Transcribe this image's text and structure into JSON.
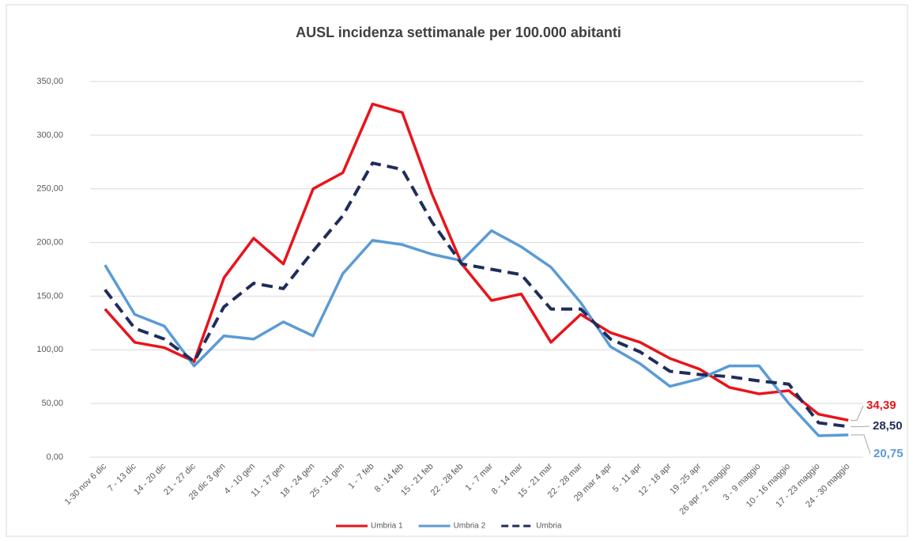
{
  "chart_data": {
    "type": "line",
    "title": "AUSL incidenza settimanale per 100.000 abitanti",
    "categories": [
      "1-30 nov 6 dic",
      "7 - 13 dic",
      "14 - 20 dic",
      "21 - 27 dic",
      "28 dic 3 gen",
      "4 - 10 gen",
      "11 - 17 gen",
      "18 - 24 gen",
      "25 - 31 gen",
      "1 - 7 feb",
      "8 - 14 feb",
      "15 - 21 feb",
      "22 - 28 feb",
      "1 - 7 mar",
      "8 - 14 mar",
      "15 - 21 mar",
      "22 - 28 mar",
      "29 mar 4 apr",
      "5 - 11 apr",
      "12 - 18 apr",
      "19 -25 apr",
      "26 apr - 2 maggio",
      "3 - 9 maggio",
      "10 - 16 maggio",
      "17 - 23 maggio",
      "24 - 30 maggio"
    ],
    "series": [
      {
        "name": "Umbria 1",
        "color": "#e8141b",
        "line_style": "solid",
        "values": [
          138,
          107,
          102,
          89,
          167,
          204,
          180,
          250,
          265,
          329,
          321,
          245,
          180,
          146,
          152,
          107,
          133,
          116,
          107,
          92,
          82,
          65,
          59,
          62,
          40,
          34.39
        ],
        "value_labels": [
          null,
          null,
          null,
          null,
          null,
          null,
          null,
          null,
          null,
          null,
          null,
          null,
          null,
          null,
          null,
          null,
          null,
          null,
          null,
          null,
          null,
          null,
          null,
          null,
          null,
          "34,39"
        ]
      },
      {
        "name": "Umbria 2",
        "color": "#5b9bd5",
        "line_style": "solid",
        "values": [
          179,
          133,
          122,
          85,
          113,
          110,
          126,
          113,
          171,
          202,
          198,
          189,
          183,
          211,
          196,
          177,
          144,
          103,
          87,
          66,
          73,
          85,
          85,
          50,
          20,
          20.75
        ],
        "value_labels": [
          null,
          null,
          null,
          null,
          null,
          null,
          null,
          null,
          null,
          null,
          null,
          null,
          null,
          null,
          null,
          null,
          null,
          null,
          null,
          null,
          null,
          null,
          null,
          null,
          null,
          "20,75"
        ]
      },
      {
        "name": "Umbria",
        "color": "#1f2d5c",
        "line_style": "dashed",
        "values": [
          156,
          120,
          110,
          89,
          140,
          162,
          157,
          192,
          225,
          274,
          268,
          219,
          180,
          175,
          170,
          138,
          138,
          110,
          98,
          80,
          77,
          75,
          71,
          68,
          32,
          28.5
        ],
        "value_labels": [
          null,
          null,
          null,
          null,
          null,
          null,
          null,
          null,
          null,
          null,
          null,
          null,
          null,
          null,
          null,
          null,
          null,
          null,
          null,
          null,
          null,
          null,
          null,
          null,
          null,
          "28,50"
        ]
      }
    ],
    "ylim": [
      0,
      350
    ],
    "yticks": [
      {
        "value": 0,
        "label": "0,00"
      },
      {
        "value": 50,
        "label": "50,00"
      },
      {
        "value": 100,
        "label": "100,00"
      },
      {
        "value": 150,
        "label": "150,00"
      },
      {
        "value": 200,
        "label": "200,00"
      },
      {
        "value": 250,
        "label": "250,00"
      },
      {
        "value": 300,
        "label": "300,00"
      },
      {
        "value": 350,
        "label": "350,00"
      }
    ],
    "grid": true,
    "legend": "bottom"
  }
}
